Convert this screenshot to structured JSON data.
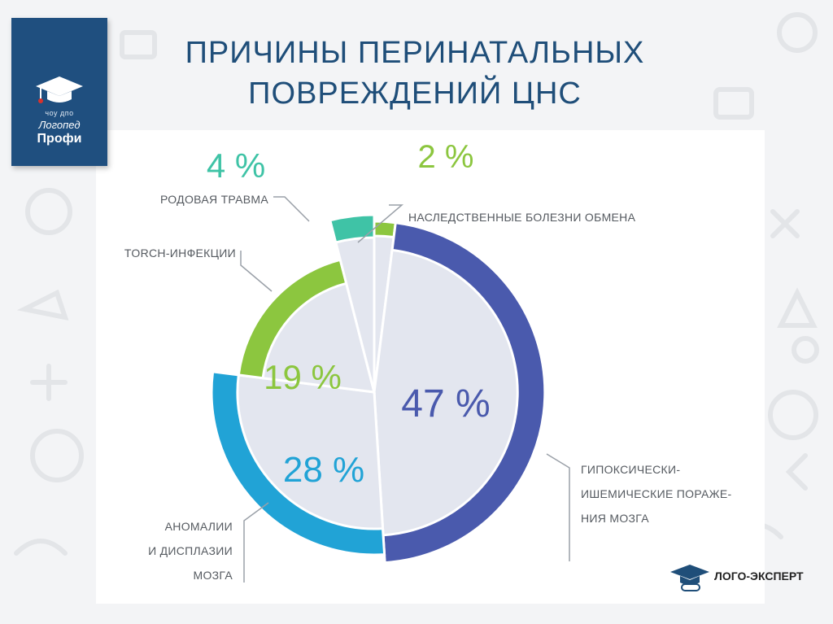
{
  "slide": {
    "title_line1": "ПРИЧИНЫ ПЕРИНАТАЛЬНЫХ",
    "title_line2": "ПОВРЕЖДЕНИЙ ЦНС"
  },
  "badge": {
    "line1": "чоу дпо",
    "line2": "Логопед",
    "line3": "Профи"
  },
  "footer_logo": {
    "text": "ЛОГО-ЭКСПЕРТ"
  },
  "chart_data": {
    "type": "pie",
    "title": "ПРИЧИНЫ ПЕРИНАТАЛЬНЫХ ПОВРЕЖДЕНИЙ ЦНС",
    "categories": [
      "Наследственные болезни обмена",
      "Гипоксически-ишемические поражения мозга",
      "Аномалии и дисплазии мозга",
      "TORCH-инфекции",
      "Родовая травма"
    ],
    "values": [
      2,
      47,
      28,
      19,
      4
    ],
    "percent_labels": [
      "2 %",
      "47 %",
      "28 %",
      "19 %",
      "4 %"
    ],
    "slice_colors": [
      "#8cc63f",
      "#4a5aad",
      "#21a3d6",
      "#8cc63f",
      "#3fc3a6"
    ],
    "label_lines": [
      [
        "НАСЛЕДСТВЕННЫЕ БОЛЕЗНИ ОБМЕНА"
      ],
      [
        "ГИПОКСИЧЕСКИ-",
        "ИШЕМИЧЕСКИЕ ПОРАЖЕ-",
        "НИЯ МОЗГА"
      ],
      [
        "АНОМАЛИИ",
        "И ДИСПЛАЗИИ",
        "МОЗГА"
      ],
      [
        "TORCH-ИНФЕКЦИИ"
      ],
      [
        "РОДОВАЯ ТРАВМА"
      ]
    ],
    "legend": "none"
  }
}
